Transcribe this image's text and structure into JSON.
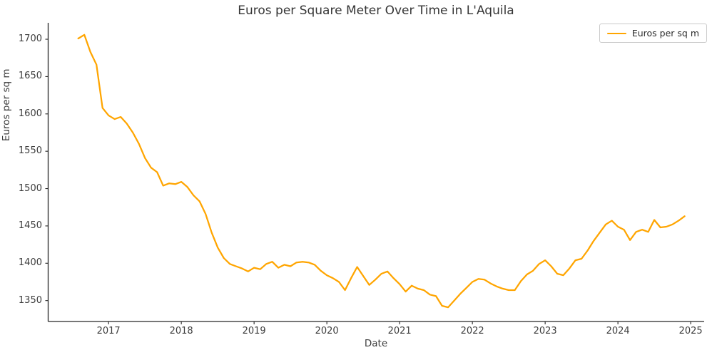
{
  "chart_data": {
    "type": "line",
    "title": "Euros per Square Meter Over Time in L'Aquila",
    "xlabel": "Date",
    "ylabel": "Euros per sq m",
    "legend_position": "upper right",
    "grid": false,
    "line_color": "#FFA500",
    "axis_color": "#262626",
    "xlim": [
      2016.17,
      2025.185
    ],
    "ylim": [
      1322,
      1722
    ],
    "yticks": [
      1350,
      1400,
      1450,
      1500,
      1550,
      1600,
      1650,
      1700
    ],
    "xticks": [
      2017,
      2018,
      2019,
      2020,
      2021,
      2022,
      2023,
      2024,
      2025
    ],
    "x": [
      "2016-08",
      "2016-09",
      "2016-10",
      "2016-11",
      "2016-12",
      "2017-01",
      "2017-02",
      "2017-03",
      "2017-04",
      "2017-05",
      "2017-06",
      "2017-07",
      "2017-08",
      "2017-09",
      "2017-10",
      "2017-11",
      "2017-12",
      "2018-01",
      "2018-02",
      "2018-03",
      "2018-04",
      "2018-05",
      "2018-06",
      "2018-07",
      "2018-08",
      "2018-09",
      "2018-10",
      "2018-11",
      "2018-12",
      "2019-01",
      "2019-02",
      "2019-03",
      "2019-04",
      "2019-05",
      "2019-06",
      "2019-07",
      "2019-08",
      "2019-09",
      "2019-10",
      "2019-11",
      "2019-12",
      "2020-01",
      "2020-02",
      "2020-03",
      "2020-04",
      "2020-05",
      "2020-06",
      "2020-07",
      "2020-08",
      "2020-09",
      "2020-10",
      "2020-11",
      "2020-12",
      "2021-01",
      "2021-02",
      "2021-03",
      "2021-04",
      "2021-05",
      "2021-06",
      "2021-07",
      "2021-08",
      "2021-09",
      "2021-10",
      "2021-11",
      "2021-12",
      "2022-01",
      "2022-02",
      "2022-03",
      "2022-04",
      "2022-05",
      "2022-06",
      "2022-07",
      "2022-08",
      "2022-09",
      "2022-10",
      "2022-11",
      "2022-12",
      "2023-01",
      "2023-02",
      "2023-03",
      "2023-04",
      "2023-05",
      "2023-06",
      "2023-07",
      "2023-08",
      "2023-09",
      "2023-10",
      "2023-11",
      "2023-12",
      "2024-01",
      "2024-02",
      "2024-03",
      "2024-04",
      "2024-05",
      "2024-06",
      "2024-07",
      "2024-08",
      "2024-09",
      "2024-10",
      "2024-11",
      "2024-12"
    ],
    "series": [
      {
        "name": "Euros per sq m",
        "values": [
          1701,
          1706,
          1683,
          1666,
          1608,
          1598,
          1593,
          1596,
          1587,
          1575,
          1560,
          1541,
          1528,
          1522,
          1504,
          1507,
          1506,
          1509,
          1502,
          1491,
          1483,
          1466,
          1441,
          1421,
          1407,
          1399,
          1396,
          1393,
          1389,
          1394,
          1392,
          1399,
          1402,
          1394,
          1398,
          1396,
          1401,
          1402,
          1401,
          1398,
          1390,
          1384,
          1380,
          1375,
          1364,
          1380,
          1395,
          1383,
          1371,
          1378,
          1386,
          1389,
          1380,
          1372,
          1362,
          1370,
          1366,
          1364,
          1358,
          1356,
          1343,
          1341,
          1350,
          1359,
          1367,
          1375,
          1379,
          1378,
          1373,
          1369,
          1366,
          1364,
          1364,
          1376,
          1385,
          1390,
          1399,
          1404,
          1396,
          1386,
          1384,
          1393,
          1404,
          1406,
          1417,
          1430,
          1441,
          1452,
          1457,
          1449,
          1445,
          1431,
          1442,
          1445,
          1442,
          1458,
          1448,
          1449,
          1452,
          1457,
          1463
        ]
      }
    ]
  }
}
